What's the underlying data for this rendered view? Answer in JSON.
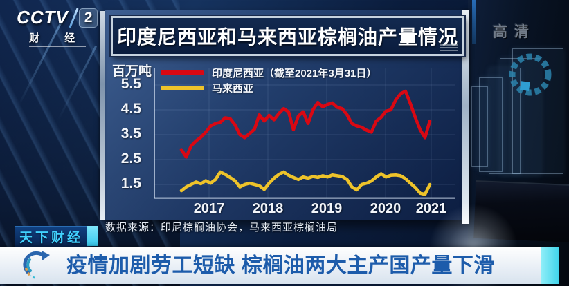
{
  "channel": {
    "name": "CCTV",
    "number": "2",
    "subtitle": "财 经"
  },
  "watermark": {
    "label": "高清"
  },
  "panel": {
    "title": "印度尼西亚和马来西亚棕榈油产量情况",
    "unit_label": "百万吨",
    "source": "数据来源：印尼棕榈油协会，马来西亚棕榈油局"
  },
  "chart_data": {
    "type": "line",
    "title": "印度尼西亚和马来西亚棕榈油产量情况",
    "ylabel": "百万吨",
    "x_interval": "monthly",
    "x_start": "2016-12",
    "x_end": "2021-03",
    "x_tick_labels": [
      "2017",
      "2018",
      "2019",
      "2020",
      "2021"
    ],
    "y_tick_labels": [
      "5.5",
      "4.5",
      "3.5",
      "2.5",
      "1.5"
    ],
    "y_ticks": [
      5.5,
      4.5,
      3.5,
      2.5,
      1.5
    ],
    "ylim": [
      0.9,
      6.25
    ],
    "grid": true,
    "legend_position": "top-left",
    "series": [
      {
        "name": "印度尼西亚",
        "legend_label": "印度尼西亚（截至2021年3月31日）",
        "color": "#d90813",
        "values": [
          2.9,
          2.6,
          3.05,
          3.25,
          3.4,
          3.6,
          3.85,
          3.95,
          4.0,
          4.18,
          4.15,
          3.9,
          3.5,
          3.38,
          3.55,
          3.72,
          4.3,
          4.05,
          4.28,
          4.1,
          4.35,
          4.55,
          4.42,
          3.7,
          4.25,
          4.42,
          3.95,
          4.5,
          4.8,
          4.62,
          4.72,
          4.78,
          4.6,
          4.55,
          4.3,
          3.95,
          3.85,
          3.8,
          3.68,
          3.6,
          4.05,
          4.2,
          4.45,
          4.5,
          4.9,
          5.15,
          5.25,
          4.75,
          4.2,
          3.7,
          3.38,
          4.05
        ]
      },
      {
        "name": "马来西亚",
        "legend_label": "马来西亚",
        "color": "#eec32a",
        "values": [
          1.25,
          1.4,
          1.5,
          1.6,
          1.53,
          1.65,
          1.55,
          1.7,
          2.0,
          1.9,
          1.78,
          1.65,
          1.4,
          1.5,
          1.55,
          1.5,
          1.45,
          1.3,
          1.55,
          1.75,
          1.9,
          2.0,
          1.87,
          1.78,
          1.7,
          1.8,
          1.75,
          1.82,
          1.78,
          1.85,
          1.8,
          1.88,
          1.85,
          1.82,
          1.7,
          1.4,
          1.28,
          1.5,
          1.55,
          1.64,
          1.8,
          1.93,
          1.8,
          1.87,
          1.88,
          1.85,
          1.73,
          1.55,
          1.38,
          1.15,
          1.1,
          1.5
        ]
      }
    ]
  },
  "badge": {
    "label": "天下财经",
    "text_color": "#41d2ff",
    "accent_color": "#3ec9ed"
  },
  "ticker": {
    "headline": "疫情加剧劳工短缺 棕榈油两大主产国产量下滑",
    "text_color": "#1d5cab"
  }
}
